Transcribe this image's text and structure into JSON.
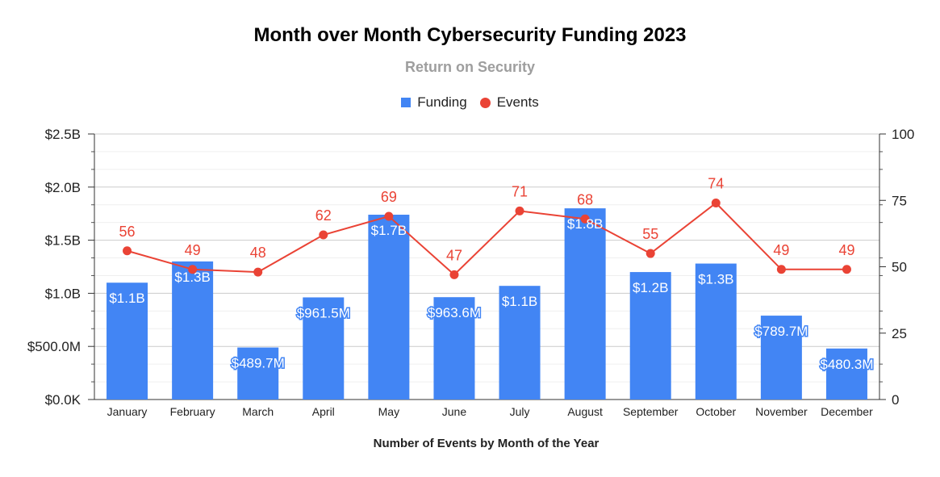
{
  "chart_data": {
    "type": "bar",
    "title": "Month over Month Cybersecurity Funding 2023",
    "subtitle": "Return on Security",
    "xlabel": "Number of Events by Month of the Year",
    "categories": [
      "January",
      "February",
      "March",
      "April",
      "May",
      "June",
      "July",
      "August",
      "September",
      "October",
      "November",
      "December"
    ],
    "series": [
      {
        "name": "Funding",
        "type": "bar",
        "axis": "left",
        "color": "#4285f4",
        "values": [
          1.1,
          1.3,
          0.4897,
          0.9615,
          1.74,
          0.9636,
          1.07,
          1.8,
          1.2,
          1.28,
          0.7897,
          0.4803
        ],
        "labels": [
          "$1.1B",
          "$1.3B",
          "$489.7M",
          "$961.5M",
          "$1.7B",
          "$963.6M",
          "$1.1B",
          "$1.8B",
          "$1.2B",
          "$1.3B",
          "$789.7M",
          "$480.3M"
        ]
      },
      {
        "name": "Events",
        "type": "line",
        "axis": "right",
        "color": "#ea4335",
        "values": [
          56,
          49,
          48,
          62,
          69,
          47,
          71,
          68,
          55,
          74,
          49,
          49
        ]
      }
    ],
    "y_left": {
      "range": [
        0,
        2.5
      ],
      "ticks": [
        0,
        0.5,
        1.0,
        1.5,
        2.0,
        2.5
      ],
      "tick_labels": [
        "$0.0K",
        "$500.0M",
        "$1.0B",
        "$1.5B",
        "$2.0B",
        "$2.5B"
      ]
    },
    "y_right": {
      "range": [
        0,
        100
      ],
      "ticks": [
        0,
        25,
        50,
        75,
        100
      ],
      "tick_labels": [
        "0",
        "25",
        "50",
        "75",
        "100"
      ]
    },
    "legend": [
      "Funding",
      "Events"
    ],
    "legend_position": "top-center",
    "grid": true
  }
}
